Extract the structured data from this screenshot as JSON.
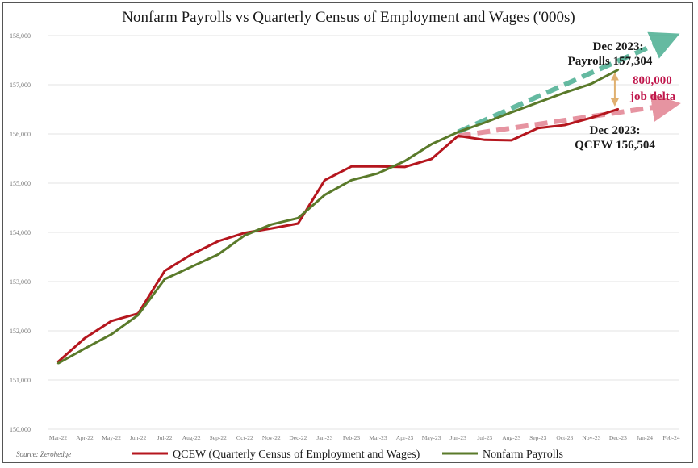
{
  "chart_data": {
    "type": "line",
    "title": "Nonfarm Payrolls vs Quarterly Census of Employment and Wages ('000s)",
    "categories": [
      "Mar-22",
      "Apr-22",
      "May-22",
      "Jun-22",
      "Jul-22",
      "Aug-22",
      "Sep-22",
      "Oct-22",
      "Nov-22",
      "Dec-22",
      "Jan-23",
      "Feb-23",
      "Mar-23",
      "Apr-23",
      "May-23",
      "Jun-23",
      "Jul-23",
      "Aug-23",
      "Sep-23",
      "Oct-23",
      "Nov-23",
      "Dec-23",
      "Jan-24",
      "Feb-24"
    ],
    "ylim": [
      150000,
      158000
    ],
    "yticks": [
      "150,000",
      "151,000",
      "152,000",
      "153,000",
      "154,000",
      "155,000",
      "156,000",
      "157,000",
      "158,000"
    ],
    "series": [
      {
        "name": "QCEW (Quarterly Census of Employment and Wages)",
        "color": "#b5161e",
        "values": [
          151370,
          151850,
          152200,
          152350,
          153220,
          153550,
          153820,
          153990,
          154080,
          154180,
          155060,
          155340,
          155340,
          155330,
          155490,
          155960,
          155880,
          155870,
          156120,
          156180,
          156330,
          156504,
          null,
          null
        ]
      },
      {
        "name": "Nonfarm Payrolls",
        "color": "#5a7a2a",
        "values": [
          151340,
          151640,
          151930,
          152320,
          153050,
          153300,
          153550,
          153940,
          154160,
          154290,
          154760,
          155060,
          155200,
          155450,
          155790,
          156040,
          156230,
          156440,
          156640,
          156840,
          157020,
          157304,
          null,
          null
        ]
      }
    ],
    "projections": [
      {
        "color": "#3fa98a",
        "from": [
          15,
          156040
        ],
        "to": [
          23,
          157920
        ]
      },
      {
        "color": "#e07a8a",
        "from": [
          15,
          155960
        ],
        "to": [
          23,
          156580
        ]
      }
    ],
    "annotations": {
      "payrolls": [
        "Dec 2023:",
        "Payrolls 157,304"
      ],
      "qcew": [
        "Dec 2023:",
        "QCEW 156,504"
      ],
      "delta": [
        "800,000",
        "job delta"
      ]
    },
    "legend": {
      "placement": "bottom",
      "items": [
        {
          "label": "QCEW (Quarterly Census of Employment and Wages)",
          "color": "#b5161e"
        },
        {
          "label": "Nonfarm Payrolls",
          "color": "#5a7a2a"
        }
      ]
    },
    "source": "Source: Zerohedge",
    "grid": true
  }
}
